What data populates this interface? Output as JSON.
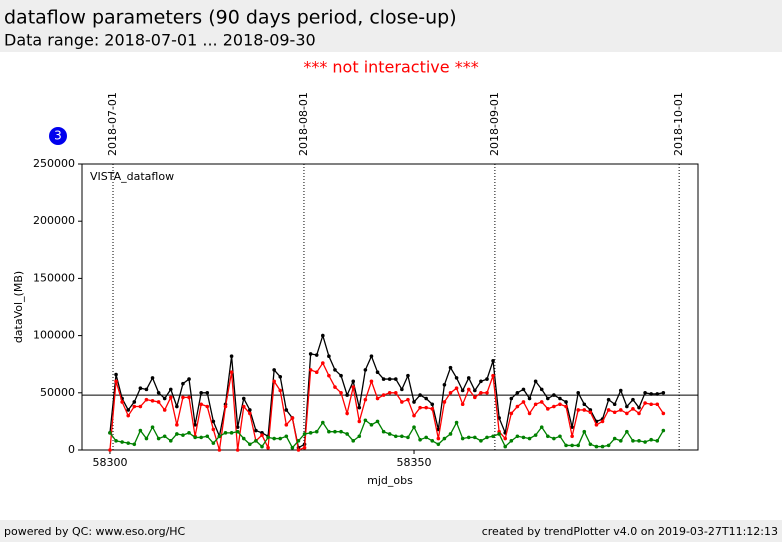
{
  "header": {
    "title": "dataflow parameters (90 days period, close-up)",
    "subtitle": "Data range: 2018-07-01 ... 2018-09-30"
  },
  "notice": "*** not interactive ***",
  "badge": "3",
  "footer": {
    "left": "powered by QC: www.eso.org/HC",
    "right": "created by trendPlotter v4.0 on 2019-03-27T11:12:13"
  },
  "chart_data": {
    "type": "line",
    "annotation": "VISTA_dataflow",
    "xlabel": "mjd_obs",
    "ylabel": "dataVol_(MB)",
    "xlim": [
      58295.4,
      58396.7
    ],
    "xticks": [
      58300,
      58350
    ],
    "ylim": [
      0,
      250000
    ],
    "yticks": [
      0,
      50000,
      100000,
      150000,
      200000,
      250000
    ],
    "reference_line": 48000,
    "date_lines": [
      {
        "value": 58300.5,
        "label": "2018-07-01"
      },
      {
        "value": 58331.9,
        "label": "2018-08-01"
      },
      {
        "value": 58363.3,
        "label": "2018-09-01"
      },
      {
        "value": 58393.6,
        "label": "2018-10-01"
      }
    ],
    "x": [
      58300,
      58301,
      58302,
      58303,
      58304,
      58305,
      58306,
      58307,
      58308,
      58309,
      58310,
      58311,
      58312,
      58313,
      58314,
      58315,
      58316,
      58317,
      58318,
      58319,
      58320,
      58321,
      58322,
      58323,
      58324,
      58325,
      58326,
      58327,
      58328,
      58329,
      58330,
      58331,
      58332,
      58333,
      58334,
      58335,
      58336,
      58337,
      58338,
      58339,
      58340,
      58341,
      58342,
      58343,
      58344,
      58345,
      58346,
      58347,
      58348,
      58349,
      58350,
      58351,
      58352,
      58353,
      58354,
      58355,
      58356,
      58357,
      58358,
      58359,
      58360,
      58361,
      58362,
      58363,
      58364,
      58365,
      58366,
      58367,
      58368,
      58369,
      58370,
      58371,
      58372,
      58373,
      58374,
      58375,
      58376,
      58377,
      58378,
      58379,
      58380,
      58381,
      58382,
      58383,
      58384,
      58385,
      58386,
      58387,
      58388,
      58389,
      58390,
      58391
    ],
    "series": [
      {
        "color": "#000000",
        "values": [
          15000,
          66000,
          45000,
          35000,
          42000,
          54000,
          53000,
          63000,
          50000,
          45000,
          53000,
          38000,
          58000,
          62000,
          22000,
          50000,
          50000,
          25000,
          12000,
          40000,
          82000,
          20000,
          45000,
          35000,
          17000,
          15000,
          12000,
          70000,
          64000,
          35000,
          28000,
          2000,
          5000,
          84000,
          83000,
          100000,
          82000,
          70000,
          65000,
          48000,
          60000,
          37000,
          70000,
          82000,
          68000,
          62000,
          62000,
          62000,
          53000,
          65000,
          42000,
          48000,
          45000,
          40000,
          18000,
          57000,
          72000,
          63000,
          52000,
          63000,
          52000,
          60000,
          62000,
          78000,
          28000,
          15000,
          45000,
          50000,
          53000,
          45000,
          60000,
          53000,
          45000,
          48000,
          45000,
          42000,
          20000,
          50000,
          40000,
          35000,
          25000,
          27000,
          44000,
          40000,
          52000,
          38000,
          44000,
          37000,
          50000,
          49000,
          49000,
          50000
        ]
      },
      {
        "color": "#ff0000",
        "values": [
          0,
          60000,
          42000,
          30000,
          38000,
          38000,
          44000,
          43000,
          42000,
          35000,
          46000,
          22000,
          46000,
          46000,
          12000,
          40000,
          38000,
          18000,
          0,
          38000,
          68000,
          0,
          38000,
          32000,
          8000,
          13000,
          2000,
          60000,
          52000,
          22000,
          28000,
          0,
          2000,
          70000,
          68000,
          76000,
          65000,
          55000,
          50000,
          32000,
          55000,
          25000,
          44000,
          60000,
          45000,
          48000,
          50000,
          50000,
          42000,
          44000,
          30000,
          37000,
          37000,
          36000,
          10000,
          42000,
          50000,
          54000,
          40000,
          53000,
          46000,
          50000,
          50000,
          65000,
          16000,
          10000,
          32000,
          38000,
          42000,
          32000,
          40000,
          42000,
          36000,
          38000,
          40000,
          38000,
          12000,
          35000,
          35000,
          33000,
          22000,
          25000,
          35000,
          33000,
          35000,
          32000,
          36000,
          32000,
          41000,
          40000,
          40000,
          32000
        ]
      },
      {
        "color": "#008000",
        "values": [
          15000,
          8000,
          7000,
          6000,
          5000,
          17000,
          10000,
          20000,
          10000,
          12000,
          8000,
          14000,
          13000,
          15000,
          11000,
          11000,
          12000,
          6000,
          12000,
          15000,
          15000,
          16000,
          10000,
          5000,
          8000,
          3000,
          11000,
          10000,
          10000,
          12000,
          2000,
          8000,
          14000,
          15000,
          16000,
          24000,
          16000,
          16000,
          16000,
          14000,
          8000,
          12000,
          26000,
          22000,
          25000,
          16000,
          14000,
          12000,
          12000,
          11000,
          20000,
          9000,
          11000,
          8000,
          5000,
          10000,
          14000,
          24000,
          10000,
          11000,
          11000,
          8000,
          11000,
          12000,
          14000,
          3000,
          8000,
          12000,
          11000,
          10000,
          13000,
          20000,
          12000,
          10000,
          12000,
          4000,
          4000,
          4000,
          16000,
          5000,
          3000,
          3000,
          4000,
          10000,
          8000,
          16000,
          8000,
          8000,
          7000,
          9000,
          8000,
          17000
        ]
      }
    ]
  }
}
